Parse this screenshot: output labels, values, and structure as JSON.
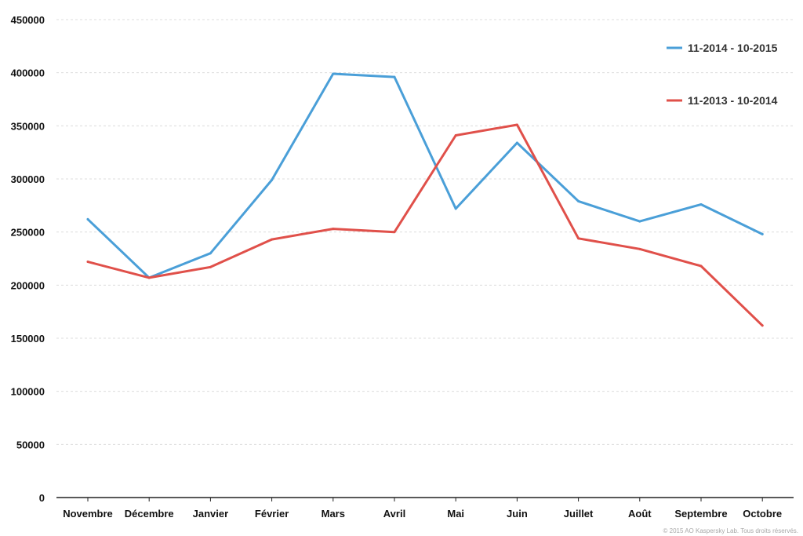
{
  "chart_data": {
    "type": "line",
    "title": "",
    "xlabel": "",
    "ylabel": "",
    "categories": [
      "Novembre",
      "Décembre",
      "Janvier",
      "Février",
      "Mars",
      "Avril",
      "Mai",
      "Juin",
      "Juillet",
      "Août",
      "Septembre",
      "Octobre"
    ],
    "ylim": [
      0,
      450000
    ],
    "y_ticks": [
      0,
      50000,
      100000,
      150000,
      200000,
      250000,
      300000,
      350000,
      400000,
      450000
    ],
    "grid": true,
    "legend_position": "top-right",
    "series": [
      {
        "name": "11-2014  - 10-2015",
        "color": "#4a9fd8",
        "values": [
          262000,
          207000,
          230000,
          299000,
          399000,
          396000,
          272000,
          334000,
          279000,
          260000,
          276000,
          248000
        ]
      },
      {
        "name": "11-2013  - 10-2014",
        "color": "#e0504a",
        "values": [
          222000,
          207000,
          217000,
          243000,
          253000,
          250000,
          341000,
          351000,
          244000,
          234000,
          218000,
          162000
        ]
      }
    ]
  },
  "copyright": "© 2015 AO Kaspersky Lab. Tous droits réservés."
}
